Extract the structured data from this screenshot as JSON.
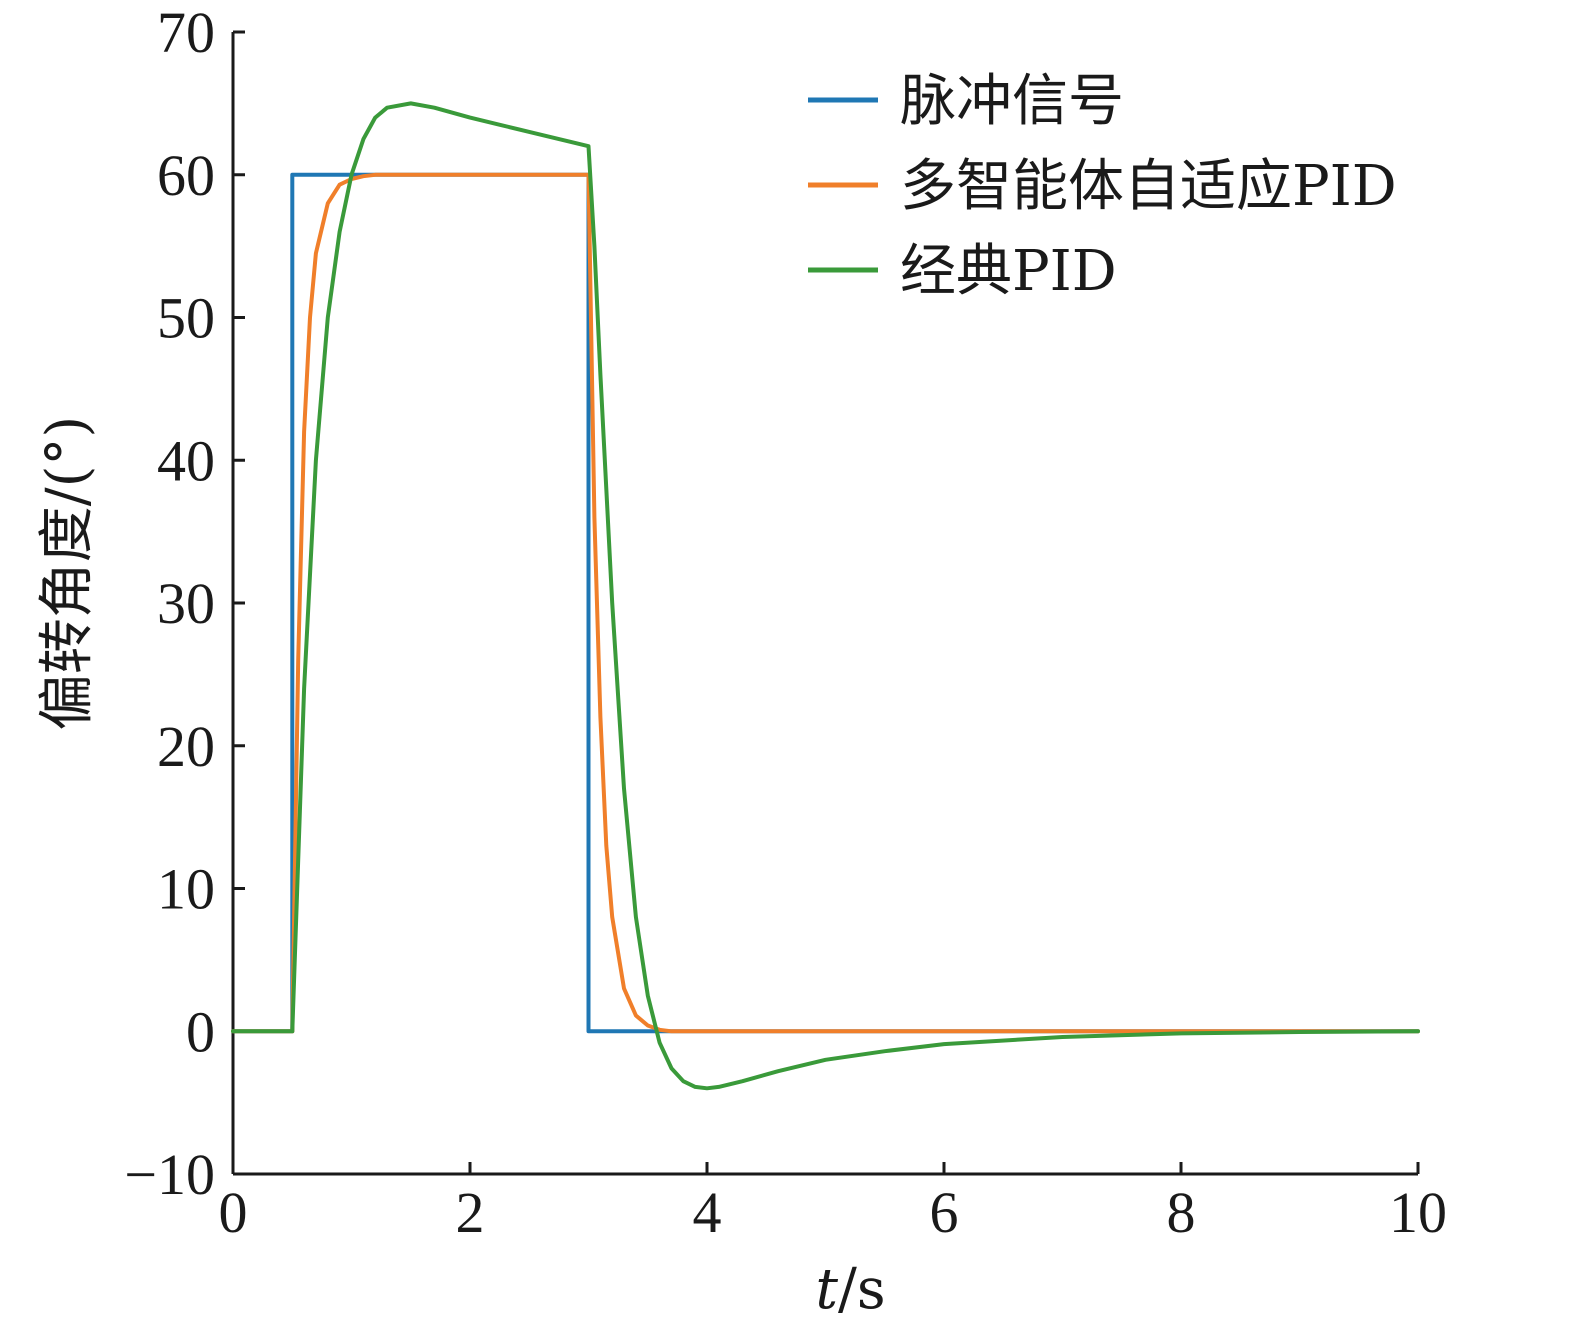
{
  "chart_data": {
    "type": "line",
    "xlabel_italic": "t",
    "xlabel_unit": "/s",
    "ylabel": "偏转角度/(°)",
    "xlim": [
      0,
      10
    ],
    "ylim": [
      -10,
      70
    ],
    "xticks": [
      0,
      2,
      4,
      6,
      8,
      10
    ],
    "yticks": [
      -10,
      0,
      10,
      20,
      30,
      40,
      50,
      60,
      70
    ],
    "xtick_labels": [
      "0",
      "2",
      "4",
      "6",
      "8",
      "10"
    ],
    "ytick_labels": [
      "−10",
      "0",
      "10",
      "20",
      "30",
      "40",
      "50",
      "60",
      "70"
    ],
    "grid": false,
    "legend_position": "top-right",
    "series": [
      {
        "name": "脉冲信号",
        "color": "#1f77b4",
        "x": [
          0,
          0.5,
          0.5,
          3.0,
          3.0,
          10
        ],
        "y": [
          0,
          0,
          60,
          60,
          0,
          0
        ]
      },
      {
        "name": "多智能体自适应PID",
        "color": "#f07f2a",
        "x": [
          0,
          0.5,
          0.55,
          0.6,
          0.65,
          0.7,
          0.8,
          0.9,
          1.0,
          1.1,
          1.2,
          1.4,
          3.0,
          3.05,
          3.1,
          3.15,
          3.2,
          3.3,
          3.4,
          3.5,
          3.6,
          3.7,
          3.9,
          10
        ],
        "y": [
          0,
          0,
          26,
          42,
          50,
          54.5,
          58,
          59.3,
          59.7,
          59.9,
          60,
          60,
          60,
          36,
          22,
          13,
          8,
          3,
          1.1,
          0.4,
          0.1,
          0,
          0,
          0
        ]
      },
      {
        "name": "经典PID",
        "color": "#3a9a3a",
        "x": [
          0,
          0.5,
          0.55,
          0.6,
          0.7,
          0.8,
          0.9,
          1.0,
          1.1,
          1.2,
          1.3,
          1.5,
          1.7,
          2.0,
          2.5,
          2.9,
          3.0,
          3.05,
          3.1,
          3.2,
          3.3,
          3.4,
          3.5,
          3.6,
          3.7,
          3.8,
          3.9,
          4.0,
          4.1,
          4.3,
          4.6,
          5.0,
          5.5,
          6.0,
          7.0,
          8.0,
          9.0,
          10.0
        ],
        "y": [
          0,
          0,
          12,
          24,
          40,
          50,
          56,
          60,
          62.5,
          64,
          64.7,
          65,
          64.7,
          64,
          63,
          62.2,
          62,
          55,
          46,
          30,
          17,
          8,
          2.5,
          -0.8,
          -2.6,
          -3.5,
          -3.9,
          -4.0,
          -3.9,
          -3.5,
          -2.8,
          -2.0,
          -1.4,
          -0.9,
          -0.4,
          -0.15,
          -0.05,
          0
        ]
      }
    ]
  }
}
